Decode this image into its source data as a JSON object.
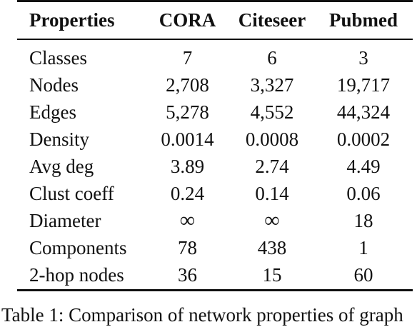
{
  "table": {
    "headers": [
      "Properties",
      "CORA",
      "Citeseer",
      "Pubmed"
    ],
    "rows": [
      {
        "label": "Classes",
        "cora": "7",
        "citeseer": "6",
        "pubmed": "3"
      },
      {
        "label": "Nodes",
        "cora": "2,708",
        "citeseer": "3,327",
        "pubmed": "19,717"
      },
      {
        "label": "Edges",
        "cora": "5,278",
        "citeseer": "4,552",
        "pubmed": "44,324"
      },
      {
        "label": "Density",
        "cora": "0.0014",
        "citeseer": "0.0008",
        "pubmed": "0.0002"
      },
      {
        "label": "Avg deg",
        "cora": "3.89",
        "citeseer": "2.74",
        "pubmed": "4.49"
      },
      {
        "label": "Clust coeff",
        "cora": "0.24",
        "citeseer": "0.14",
        "pubmed": "0.06"
      },
      {
        "label": "Diameter",
        "cora": "∞",
        "citeseer": "∞",
        "pubmed": "18"
      },
      {
        "label": "Components",
        "cora": "78",
        "citeseer": "438",
        "pubmed": "1"
      },
      {
        "label": "2-hop nodes",
        "cora": "36",
        "citeseer": "15",
        "pubmed": "60"
      }
    ]
  },
  "caption": "Table 1: Comparison of network properties of graph"
}
